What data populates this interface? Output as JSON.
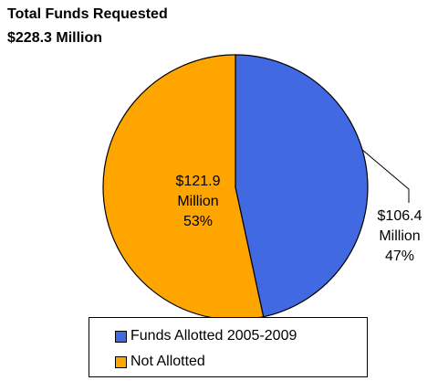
{
  "chart_data": {
    "type": "pie",
    "title": "Total Funds Requested",
    "subtitle": "$228.3 Million",
    "categories": [
      "Funds Allotted 2005-2009",
      "Not Allotted"
    ],
    "values": [
      106.4,
      121.9
    ],
    "percents": [
      47,
      53
    ],
    "unit": "Million",
    "colors": [
      "#4169E1",
      "#FFA500"
    ],
    "data_labels": [
      {
        "amount": "$106.4",
        "unit": "Million",
        "percent": "47%"
      },
      {
        "amount": "$121.9",
        "unit": "Million",
        "percent": "53%"
      }
    ],
    "legend_position": "bottom"
  }
}
